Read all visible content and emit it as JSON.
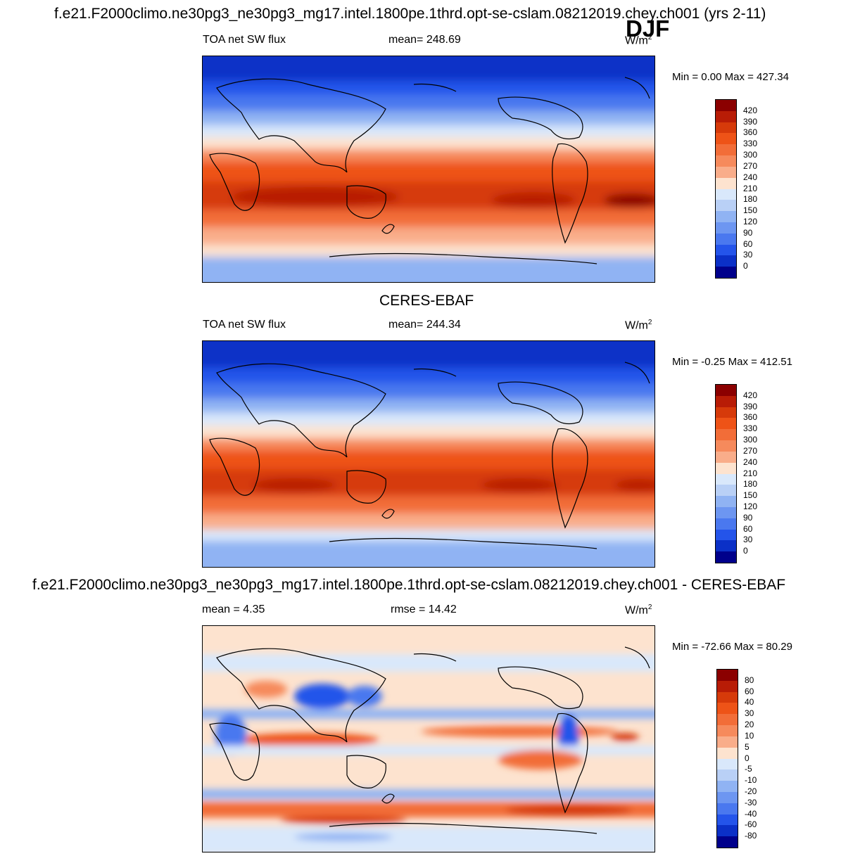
{
  "title": "f.e21.F2000climo.ne30pg3_ne30pg3_mg17.intel.1800pe.1thrd.opt-se-cslam.08212019.chey.ch001 (yrs 2-11)",
  "season": "DJF",
  "panels": [
    {
      "id": "model",
      "heading": "",
      "left_label": "TOA net SW flux",
      "center_label": "mean= 248.69",
      "units": "W/m",
      "units_sup": "2",
      "minmax": "Min =    0.00 Max = 427.34",
      "colorbar": {
        "labels": [
          "420",
          "390",
          "360",
          "330",
          "300",
          "270",
          "240",
          "210",
          "180",
          "150",
          "120",
          "90",
          "60",
          "30",
          "0"
        ],
        "colors": [
          "#8b0000",
          "#b81c06",
          "#d63a0a",
          "#ee5317",
          "#f26d38",
          "#f68a5c",
          "#f9ad8a",
          "#fde3cf",
          "#d9e8fb",
          "#b9d0f6",
          "#90b3f3",
          "#6d96f1",
          "#4a78ef",
          "#2454ea",
          "#0b30c7",
          "#00008b"
        ]
      }
    },
    {
      "id": "obs",
      "heading": "CERES-EBAF",
      "left_label": "TOA net SW flux",
      "center_label": "mean= 244.34",
      "units": "W/m",
      "units_sup": "2",
      "minmax": "Min =  -0.25 Max = 412.51",
      "colorbar": {
        "labels": [
          "420",
          "390",
          "360",
          "330",
          "300",
          "270",
          "240",
          "210",
          "180",
          "150",
          "120",
          "90",
          "60",
          "30",
          "0"
        ],
        "colors": [
          "#8b0000",
          "#b81c06",
          "#d63a0a",
          "#ee5317",
          "#f26d38",
          "#f68a5c",
          "#f9ad8a",
          "#fde3cf",
          "#d9e8fb",
          "#b9d0f6",
          "#90b3f3",
          "#6d96f1",
          "#4a78ef",
          "#2454ea",
          "#0b30c7",
          "#00008b"
        ]
      }
    },
    {
      "id": "diff",
      "heading": "f.e21.F2000climo.ne30pg3_ne30pg3_mg17.intel.1800pe.1thrd.opt-se-cslam.08212019.chey.ch001 - CERES-EBAF",
      "left_label": "mean =   4.35",
      "center_label": "rmse =  14.42",
      "units": "W/m",
      "units_sup": "2",
      "minmax": "Min = -72.66 Max =  80.29",
      "colorbar": {
        "labels": [
          "80",
          "60",
          "40",
          "30",
          "20",
          "10",
          "5",
          "0",
          "-5",
          "-10",
          "-20",
          "-30",
          "-40",
          "-60",
          "-80"
        ],
        "colors": [
          "#8b0000",
          "#b81c06",
          "#d63a0a",
          "#ee5317",
          "#f26d38",
          "#f68a5c",
          "#f9ad8a",
          "#fde3cf",
          "#d9e8fb",
          "#b9d0f6",
          "#90b3f3",
          "#6d96f1",
          "#4a78ef",
          "#2454ea",
          "#0b30c7",
          "#00008b"
        ]
      }
    }
  ]
}
